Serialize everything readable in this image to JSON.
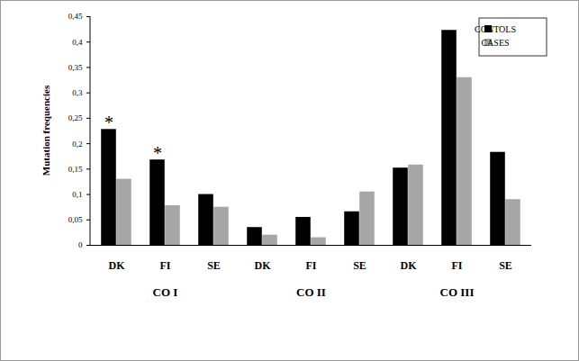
{
  "chart_data": {
    "type": "bar",
    "y_label": "Mutation frequencies",
    "categories": [
      "DK",
      "FI",
      "SE",
      "DK",
      "FI",
      "SE",
      "DK",
      "FI",
      "SE"
    ],
    "groups": [
      "CO I",
      "CO I",
      "CO I",
      "CO II",
      "CO II",
      "CO II",
      "CO III",
      "CO III",
      "CO III"
    ],
    "series": [
      {
        "name": "CONTOLS",
        "color": "#000000",
        "values": [
          0.228,
          0.168,
          0.1,
          0.035,
          0.055,
          0.066,
          0.152,
          0.423,
          0.183
        ]
      },
      {
        "name": "CASES",
        "color": "#a6a6a6",
        "values": [
          0.13,
          0.078,
          0.075,
          0.02,
          0.015,
          0.105,
          0.158,
          0.33,
          0.09
        ]
      }
    ],
    "ylim": [
      0,
      0.45
    ],
    "yticks": [
      0,
      {
        "value": 0.05,
        "label": "0,05"
      },
      {
        "value": 0.1,
        "label": "0,1"
      },
      {
        "value": 0.15,
        "label": "0,15"
      },
      {
        "value": 0.2,
        "label": "0,2"
      },
      {
        "value": 0.25,
        "label": "0,25"
      },
      {
        "value": 0.3,
        "label": "0,3"
      },
      {
        "value": 0.35,
        "label": "0,35"
      },
      {
        "value": 0.4,
        "label": "0,4"
      },
      {
        "value": 0.45,
        "label": "0,45"
      }
    ],
    "grid": false,
    "legend": "top-right",
    "annotations": [
      {
        "text": "*",
        "category": "DK",
        "group": "CO I",
        "series": "CONTOLS"
      },
      {
        "text": "*",
        "category": "FI",
        "group": "CO I",
        "series": "CONTOLS"
      }
    ]
  }
}
